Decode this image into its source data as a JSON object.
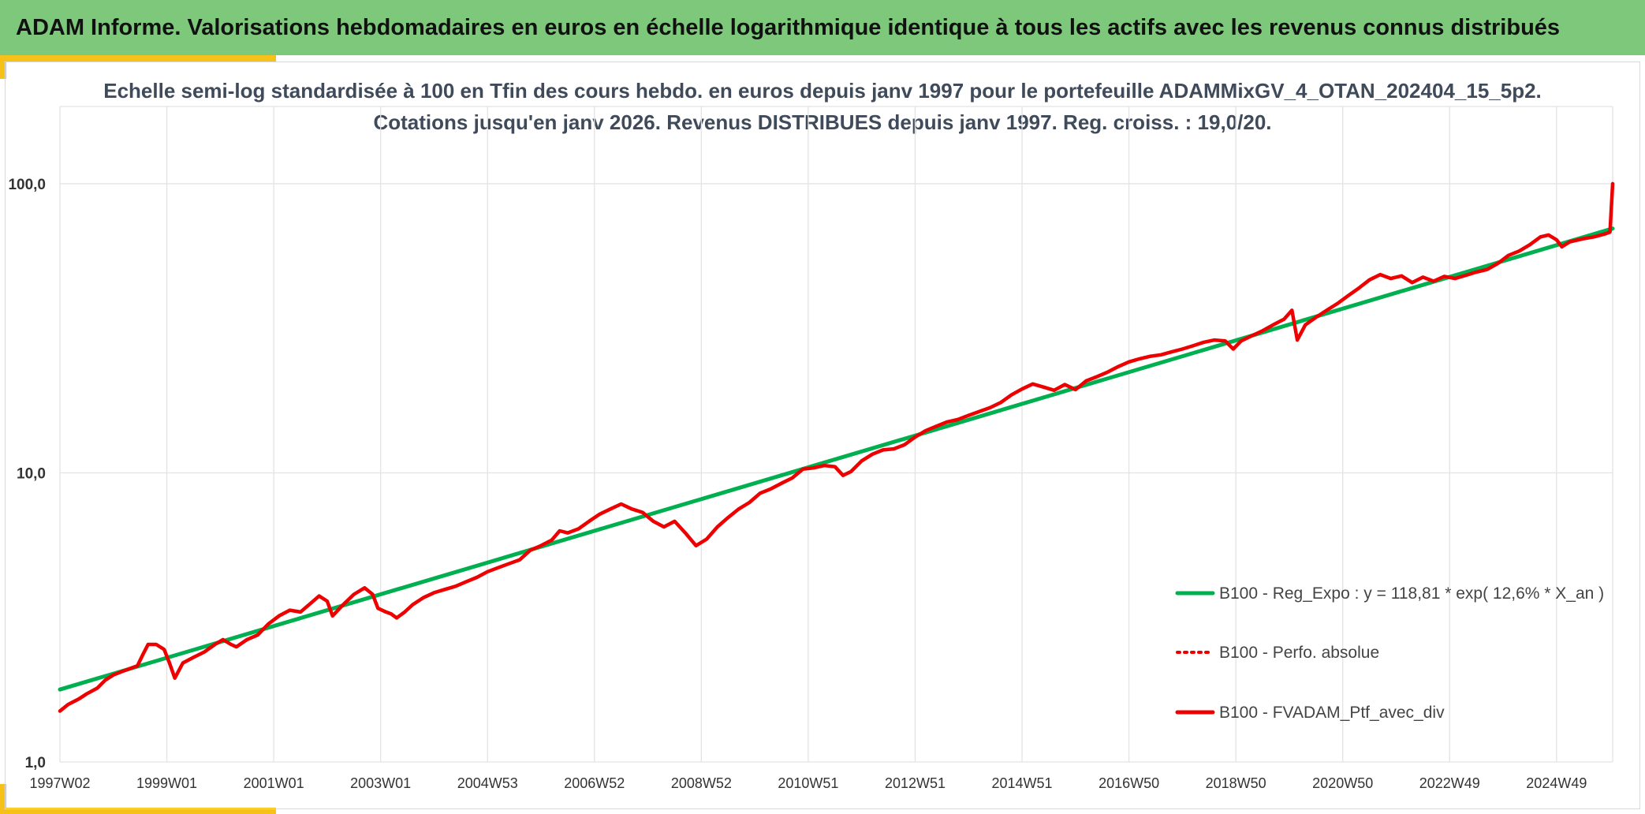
{
  "banner": {
    "title": "ADAM Informe. Valorisations hebdomadaires en euros en échelle logarithmique identique à tous les actifs avec les revenus connus distribués"
  },
  "colors": {
    "banner_bg": "#7ec87c",
    "accent": "#f6c21a",
    "regression": "#00b050",
    "portfolio": "#ee0000",
    "grid": "#e3e3e3"
  },
  "chart_data": {
    "type": "line",
    "title": "Echelle semi-log standardisée à 100 en Tfin des cours hebdo. en euros depuis janv 1997 pour le portefeuille ADAMMixGV_4_OTAN_202404_15_5p2.",
    "subtitle": "Cotations jusqu'en janv 2026. Revenus DISTRIBUES depuis janv 1997. Reg. croiss. : 19,0/20.",
    "y_scale": "log",
    "ylim": [
      1,
      185
    ],
    "yticks": [
      {
        "value": 1,
        "label": "1,0"
      },
      {
        "value": 10,
        "label": "10,0"
      },
      {
        "value": 100,
        "label": "100,0"
      }
    ],
    "x_range": [
      1997.0,
      2026.05
    ],
    "xticks": [
      {
        "value": 1997.0,
        "label": "1997W02"
      },
      {
        "value": 1999.0,
        "label": "1999W01"
      },
      {
        "value": 2001.0,
        "label": "2001W01"
      },
      {
        "value": 2003.0,
        "label": "2003W01"
      },
      {
        "value": 2005.0,
        "label": "2004W53"
      },
      {
        "value": 2007.0,
        "label": "2006W52"
      },
      {
        "value": 2009.0,
        "label": "2008W52"
      },
      {
        "value": 2011.0,
        "label": "2010W51"
      },
      {
        "value": 2013.0,
        "label": "2012W51"
      },
      {
        "value": 2015.0,
        "label": "2014W51"
      },
      {
        "value": 2017.0,
        "label": "2016W50"
      },
      {
        "value": 2019.0,
        "label": "2018W50"
      },
      {
        "value": 2021.0,
        "label": "2020W50"
      },
      {
        "value": 2023.0,
        "label": "2022W49"
      },
      {
        "value": 2025.0,
        "label": "2024W49"
      }
    ],
    "grid": true,
    "legend_position": "bottom-right",
    "series": [
      {
        "name": "B100 - Reg_Expo : y = 118,81 * exp( 12,6% *  X_an )",
        "style": "solid-green",
        "points": [
          [
            1997.0,
            1.78
          ],
          [
            2026.05,
            70.0
          ]
        ]
      },
      {
        "name": "B100 - Perfo. absolue",
        "style": "dotted-red",
        "points": []
      },
      {
        "name": "B100 - FVADAM_Ptf_avec_div",
        "style": "solid-red",
        "points": [
          [
            1997.0,
            1.5
          ],
          [
            1997.15,
            1.58
          ],
          [
            1997.35,
            1.65
          ],
          [
            1997.5,
            1.72
          ],
          [
            1997.7,
            1.8
          ],
          [
            1997.85,
            1.92
          ],
          [
            1998.0,
            2.0
          ],
          [
            1998.15,
            2.05
          ],
          [
            1998.3,
            2.1
          ],
          [
            1998.45,
            2.15
          ],
          [
            1998.55,
            2.35
          ],
          [
            1998.65,
            2.55
          ],
          [
            1998.8,
            2.55
          ],
          [
            1998.95,
            2.45
          ],
          [
            1999.05,
            2.2
          ],
          [
            1999.15,
            1.95
          ],
          [
            1999.3,
            2.2
          ],
          [
            1999.5,
            2.3
          ],
          [
            1999.7,
            2.4
          ],
          [
            1999.9,
            2.55
          ],
          [
            2000.05,
            2.65
          ],
          [
            2000.2,
            2.55
          ],
          [
            2000.3,
            2.5
          ],
          [
            2000.5,
            2.65
          ],
          [
            2000.7,
            2.75
          ],
          [
            2000.9,
            3.0
          ],
          [
            2001.1,
            3.2
          ],
          [
            2001.3,
            3.35
          ],
          [
            2001.5,
            3.3
          ],
          [
            2001.7,
            3.55
          ],
          [
            2001.85,
            3.75
          ],
          [
            2002.0,
            3.6
          ],
          [
            2002.1,
            3.2
          ],
          [
            2002.3,
            3.5
          ],
          [
            2002.5,
            3.8
          ],
          [
            2002.7,
            4.0
          ],
          [
            2002.85,
            3.8
          ],
          [
            2002.95,
            3.4
          ],
          [
            2003.1,
            3.3
          ],
          [
            2003.2,
            3.25
          ],
          [
            2003.3,
            3.15
          ],
          [
            2003.45,
            3.3
          ],
          [
            2003.6,
            3.5
          ],
          [
            2003.8,
            3.7
          ],
          [
            2004.0,
            3.85
          ],
          [
            2004.2,
            3.95
          ],
          [
            2004.4,
            4.05
          ],
          [
            2004.6,
            4.2
          ],
          [
            2004.8,
            4.35
          ],
          [
            2005.0,
            4.55
          ],
          [
            2005.2,
            4.7
          ],
          [
            2005.4,
            4.85
          ],
          [
            2005.6,
            5.0
          ],
          [
            2005.8,
            5.4
          ],
          [
            2006.0,
            5.6
          ],
          [
            2006.2,
            5.85
          ],
          [
            2006.35,
            6.3
          ],
          [
            2006.5,
            6.2
          ],
          [
            2006.7,
            6.4
          ],
          [
            2006.9,
            6.8
          ],
          [
            2007.1,
            7.2
          ],
          [
            2007.3,
            7.5
          ],
          [
            2007.5,
            7.8
          ],
          [
            2007.7,
            7.5
          ],
          [
            2007.9,
            7.3
          ],
          [
            2008.1,
            6.8
          ],
          [
            2008.3,
            6.5
          ],
          [
            2008.5,
            6.8
          ],
          [
            2008.7,
            6.2
          ],
          [
            2008.9,
            5.6
          ],
          [
            2009.1,
            5.9
          ],
          [
            2009.3,
            6.5
          ],
          [
            2009.5,
            7.0
          ],
          [
            2009.7,
            7.5
          ],
          [
            2009.9,
            7.9
          ],
          [
            2010.1,
            8.5
          ],
          [
            2010.3,
            8.8
          ],
          [
            2010.5,
            9.2
          ],
          [
            2010.7,
            9.6
          ],
          [
            2010.9,
            10.3
          ],
          [
            2011.1,
            10.4
          ],
          [
            2011.3,
            10.6
          ],
          [
            2011.5,
            10.5
          ],
          [
            2011.65,
            9.8
          ],
          [
            2011.8,
            10.1
          ],
          [
            2012.0,
            11.0
          ],
          [
            2012.2,
            11.6
          ],
          [
            2012.4,
            12.0
          ],
          [
            2012.6,
            12.1
          ],
          [
            2012.8,
            12.5
          ],
          [
            2013.0,
            13.3
          ],
          [
            2013.2,
            14.0
          ],
          [
            2013.4,
            14.5
          ],
          [
            2013.6,
            15.0
          ],
          [
            2013.8,
            15.3
          ],
          [
            2014.0,
            15.8
          ],
          [
            2014.2,
            16.3
          ],
          [
            2014.4,
            16.8
          ],
          [
            2014.6,
            17.5
          ],
          [
            2014.8,
            18.6
          ],
          [
            2015.0,
            19.5
          ],
          [
            2015.2,
            20.3
          ],
          [
            2015.4,
            19.8
          ],
          [
            2015.6,
            19.3
          ],
          [
            2015.8,
            20.2
          ],
          [
            2016.0,
            19.4
          ],
          [
            2016.2,
            20.8
          ],
          [
            2016.4,
            21.5
          ],
          [
            2016.6,
            22.3
          ],
          [
            2016.8,
            23.3
          ],
          [
            2017.0,
            24.2
          ],
          [
            2017.2,
            24.8
          ],
          [
            2017.4,
            25.3
          ],
          [
            2017.6,
            25.6
          ],
          [
            2017.8,
            26.2
          ],
          [
            2018.0,
            26.8
          ],
          [
            2018.2,
            27.5
          ],
          [
            2018.4,
            28.3
          ],
          [
            2018.6,
            28.8
          ],
          [
            2018.8,
            28.6
          ],
          [
            2018.95,
            26.8
          ],
          [
            2019.1,
            28.6
          ],
          [
            2019.3,
            29.8
          ],
          [
            2019.5,
            31.0
          ],
          [
            2019.7,
            32.5
          ],
          [
            2019.9,
            34.0
          ],
          [
            2020.05,
            36.5
          ],
          [
            2020.15,
            28.8
          ],
          [
            2020.3,
            32.5
          ],
          [
            2020.5,
            34.5
          ],
          [
            2020.7,
            36.5
          ],
          [
            2020.9,
            38.5
          ],
          [
            2021.1,
            41.0
          ],
          [
            2021.3,
            43.5
          ],
          [
            2021.5,
            46.5
          ],
          [
            2021.7,
            48.5
          ],
          [
            2021.9,
            47.0
          ],
          [
            2022.1,
            48.0
          ],
          [
            2022.3,
            45.5
          ],
          [
            2022.5,
            47.5
          ],
          [
            2022.7,
            46.0
          ],
          [
            2022.9,
            47.8
          ],
          [
            2023.1,
            47.0
          ],
          [
            2023.3,
            48.2
          ],
          [
            2023.5,
            49.5
          ],
          [
            2023.7,
            50.5
          ],
          [
            2023.9,
            53.0
          ],
          [
            2024.1,
            56.5
          ],
          [
            2024.3,
            58.5
          ],
          [
            2024.5,
            61.5
          ],
          [
            2024.7,
            65.5
          ],
          [
            2024.85,
            66.5
          ],
          [
            2025.0,
            64.0
          ],
          [
            2025.1,
            60.5
          ],
          [
            2025.25,
            63.0
          ],
          [
            2025.5,
            64.5
          ],
          [
            2025.7,
            65.5
          ],
          [
            2025.9,
            67.0
          ],
          [
            2026.0,
            68.0
          ],
          [
            2026.05,
            100.0
          ]
        ]
      }
    ]
  }
}
